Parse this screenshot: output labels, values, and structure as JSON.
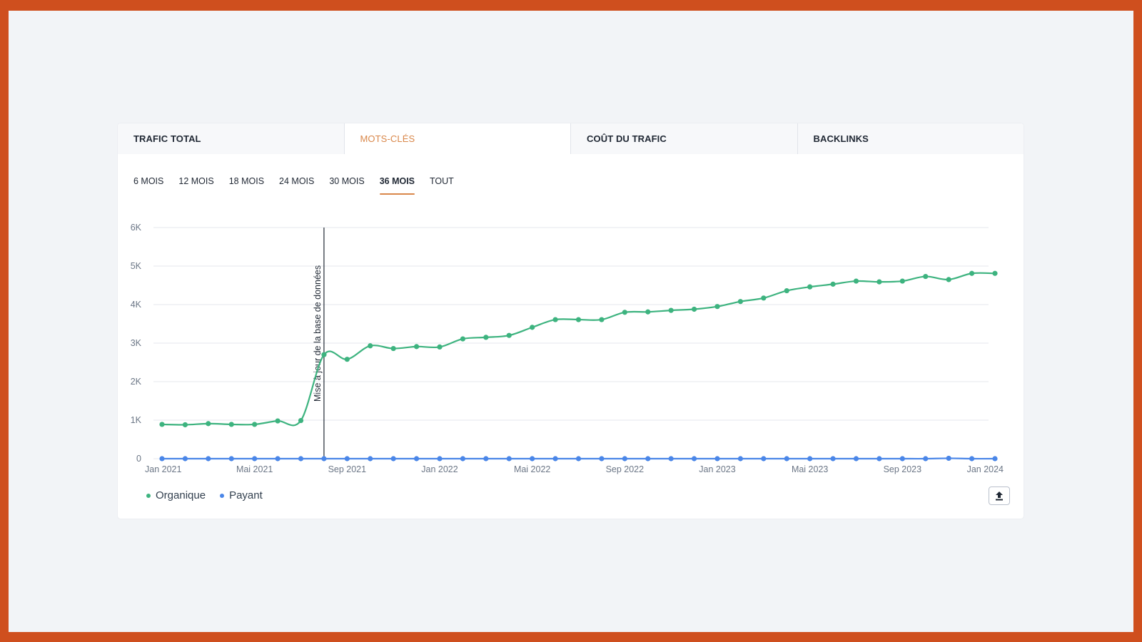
{
  "tabs": [
    {
      "label": "TRAFIC TOTAL",
      "active": false
    },
    {
      "label": "MOTS-CLÉS",
      "active": true
    },
    {
      "label": "COÛT DU TRAFIC",
      "active": false
    },
    {
      "label": "BACKLINKS",
      "active": false
    }
  ],
  "periods": [
    {
      "label": "6 MOIS",
      "active": false
    },
    {
      "label": "12 MOIS",
      "active": false
    },
    {
      "label": "18 MOIS",
      "active": false
    },
    {
      "label": "24 MOIS",
      "active": false
    },
    {
      "label": "30 MOIS",
      "active": false
    },
    {
      "label": "36 MOIS",
      "active": true
    },
    {
      "label": "TOUT",
      "active": false
    }
  ],
  "export_icon": "upload-icon",
  "colors": {
    "organic": "#3db37f",
    "paid": "#4a86e8",
    "accent": "#d9874a",
    "annotation": "#1f2733"
  },
  "chart_data": {
    "type": "line",
    "x": [
      "2021-01",
      "2021-02",
      "2021-03",
      "2021-04",
      "2021-05",
      "2021-06",
      "2021-07",
      "2021-08",
      "2021-09",
      "2021-10",
      "2021-11",
      "2021-12",
      "2022-01",
      "2022-02",
      "2022-03",
      "2022-04",
      "2022-05",
      "2022-06",
      "2022-07",
      "2022-08",
      "2022-09",
      "2022-10",
      "2022-11",
      "2022-12",
      "2023-01",
      "2023-02",
      "2023-03",
      "2023-04",
      "2023-05",
      "2023-06",
      "2023-07",
      "2023-08",
      "2023-09",
      "2023-10",
      "2023-11",
      "2023-12",
      "2024-01"
    ],
    "series": [
      {
        "name": "Organique",
        "values": [
          890,
          880,
          910,
          890,
          890,
          980,
          990,
          2700,
          2580,
          2930,
          2860,
          2910,
          2900,
          3110,
          3150,
          3200,
          3410,
          3610,
          3610,
          3610,
          3800,
          3810,
          3850,
          3880,
          3950,
          4080,
          4170,
          4360,
          4460,
          4530,
          4610,
          4590,
          4610,
          4730,
          4650,
          4810,
          4810
        ]
      },
      {
        "name": "Payant",
        "values": [
          0,
          0,
          0,
          0,
          0,
          0,
          0,
          0,
          0,
          0,
          0,
          0,
          0,
          0,
          0,
          0,
          0,
          0,
          0,
          0,
          0,
          0,
          0,
          0,
          0,
          0,
          0,
          0,
          0,
          0,
          0,
          0,
          0,
          0,
          10,
          0,
          0
        ]
      }
    ],
    "x_tick_labels": [
      {
        "at": "2021-01",
        "label": "Jan 2021"
      },
      {
        "at": "2021-05",
        "label": "Mai 2021"
      },
      {
        "at": "2021-09",
        "label": "Sep 2021"
      },
      {
        "at": "2022-01",
        "label": "Jan 2022"
      },
      {
        "at": "2022-05",
        "label": "Mai 2022"
      },
      {
        "at": "2022-09",
        "label": "Sep 2022"
      },
      {
        "at": "2023-01",
        "label": "Jan 2023"
      },
      {
        "at": "2023-05",
        "label": "Mai 2023"
      },
      {
        "at": "2023-09",
        "label": "Sep 2023"
      },
      {
        "at": "2024-01",
        "label": "Jan 2024"
      }
    ],
    "y_ticks": [
      {
        "value": 0,
        "label": "0"
      },
      {
        "value": 1000,
        "label": "1K"
      },
      {
        "value": 2000,
        "label": "2K"
      },
      {
        "value": 3000,
        "label": "3K"
      },
      {
        "value": 4000,
        "label": "4K"
      },
      {
        "value": 5000,
        "label": "5K"
      },
      {
        "value": 6000,
        "label": "6K"
      }
    ],
    "ylim": [
      0,
      6000
    ],
    "grid": true,
    "legend_position": "bottom-left",
    "annotations": [
      {
        "at": "2021-08",
        "label": "Mise à jour de la base de données"
      }
    ]
  }
}
